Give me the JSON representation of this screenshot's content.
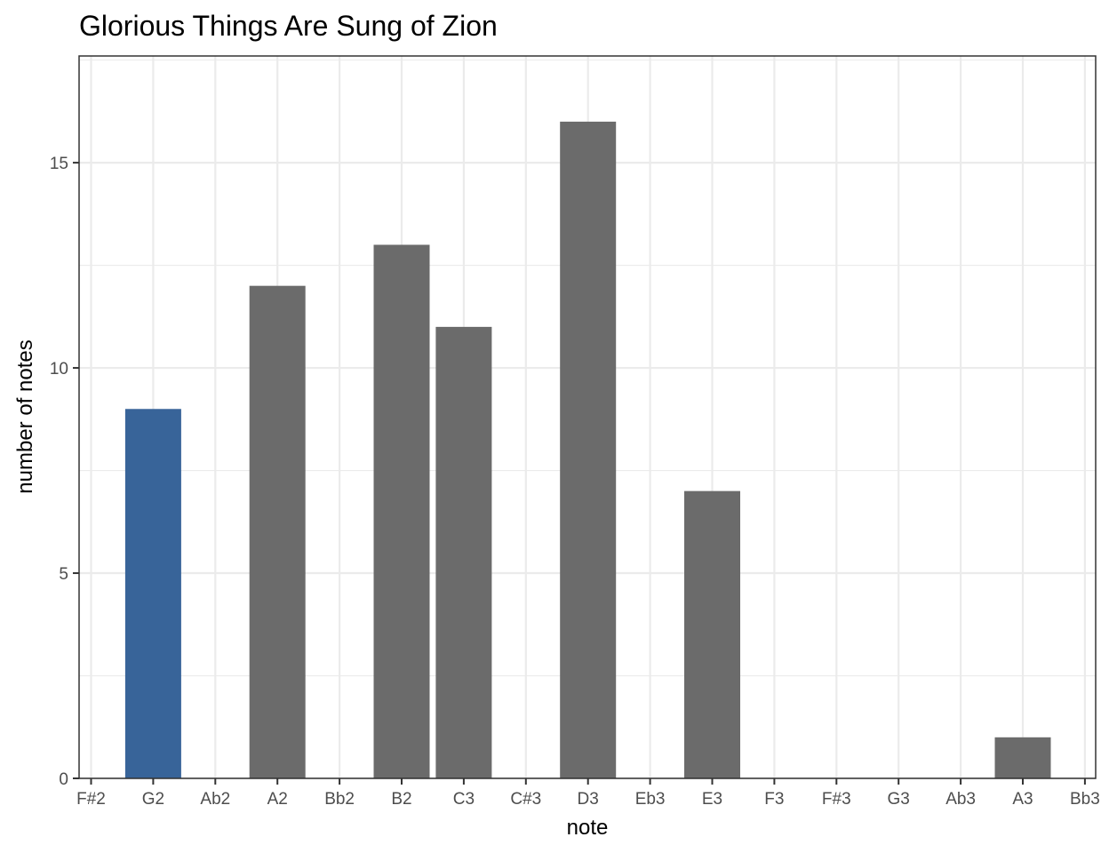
{
  "chart_data": {
    "type": "bar",
    "title": "Glorious Things Are Sung of Zion",
    "xlabel": "note",
    "ylabel": "number of notes",
    "categories": [
      "F#2",
      "G2",
      "Ab2",
      "A2",
      "Bb2",
      "B2",
      "C3",
      "C#3",
      "D3",
      "Eb3",
      "E3",
      "F3",
      "F#3",
      "G3",
      "Ab3",
      "A3",
      "Bb3"
    ],
    "values": [
      0,
      9,
      0,
      12,
      0,
      13,
      11,
      0,
      16,
      0,
      7,
      0,
      0,
      0,
      0,
      1,
      0
    ],
    "highlight": "G2",
    "ylim": [
      0,
      17.6
    ],
    "yticks": [
      0,
      5,
      10,
      15
    ],
    "grid": true,
    "colors": {
      "bar": "#6b6b6b",
      "highlight": "#386499",
      "panel_border": "#333333",
      "grid": "#ebebeb"
    }
  }
}
